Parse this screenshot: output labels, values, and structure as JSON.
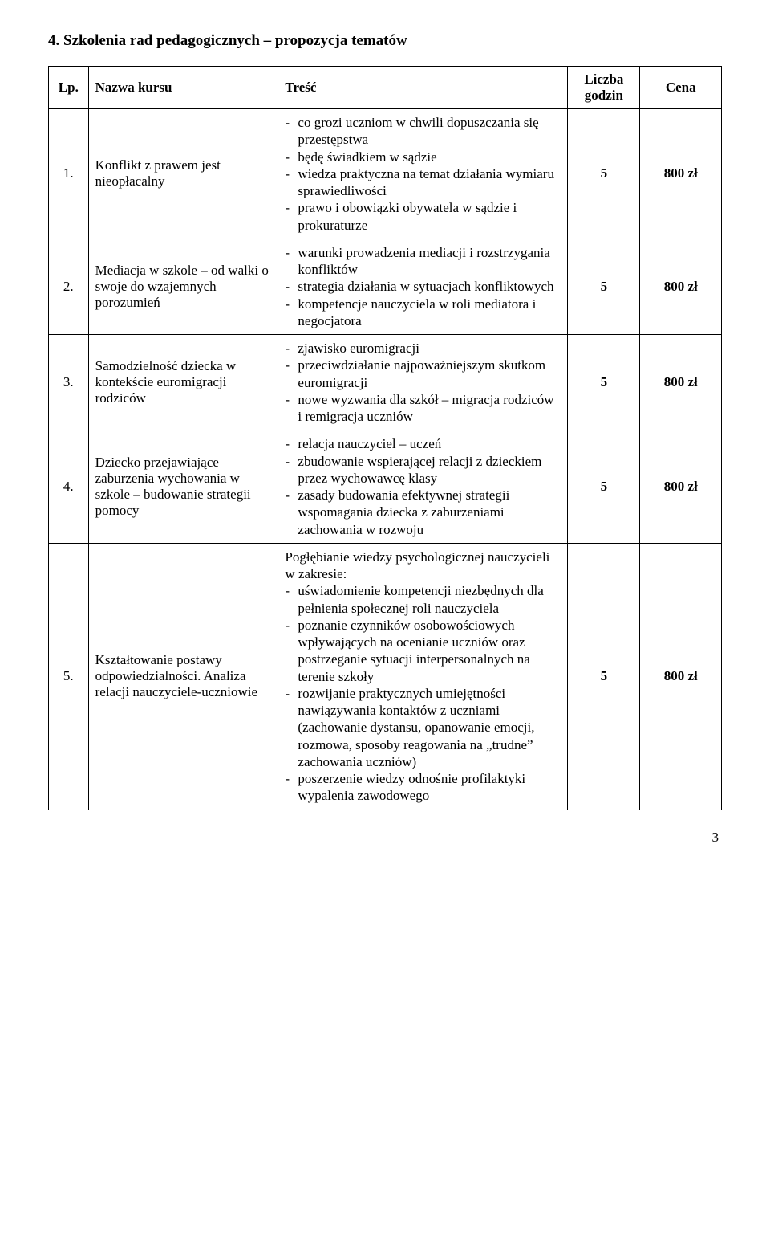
{
  "heading": "4.  Szkolenia rad pedagogicznych – propozycja tematów",
  "headers": {
    "lp": "Lp.",
    "name": "Nazwa kursu",
    "tresc": "Treść",
    "godz_l1": "Liczba",
    "godz_l2": "godzin",
    "cena": "Cena"
  },
  "rows": [
    {
      "lp": "1.",
      "name": "Konflikt z prawem jest nieopłacalny",
      "items": [
        {
          "t": "co grozi uczniom w chwili dopuszczania się przestępstwa"
        },
        {
          "t": "będę świadkiem w sądzie"
        },
        {
          "t": "wiedza praktyczna na temat działania wymiaru sprawiedliwości"
        },
        {
          "t": "prawo i obowiązki obywatela w sądzie i prokuraturze"
        }
      ],
      "godz": "5",
      "cena": "800 zł"
    },
    {
      "lp": "2.",
      "name": "Mediacja w szkole – od walki o swoje do wzajemnych porozumień",
      "items": [
        {
          "t": "warunki prowadzenia mediacji i rozstrzygania konfliktów"
        },
        {
          "t": "strategia działania w sytuacjach konfliktowych"
        },
        {
          "t": "kompetencje nauczyciela w roli mediatora i negocjatora"
        }
      ],
      "godz": "5",
      "cena": "800 zł"
    },
    {
      "lp": "3.",
      "name": "Samodzielność dziecka w kontekście euromigracji rodziców",
      "items": [
        {
          "t": "zjawisko euromigracji"
        },
        {
          "t": "przeciwdziałanie najpoważniejszym skutkom euromigracji"
        },
        {
          "t": "nowe wyzwania dla szkół – migracja rodziców i remigracja uczniów"
        }
      ],
      "godz": "5",
      "cena": "800 zł"
    },
    {
      "lp": "4.",
      "name": "Dziecko przejawiające zaburzenia wychowania w szkole – budowanie strategii pomocy",
      "items": [
        {
          "t": "relacja nauczyciel – uczeń"
        },
        {
          "t": "zbudowanie wspierającej relacji z dzieckiem przez wychowawcę klasy"
        },
        {
          "t": "zasady budowania efektywnej strategii wspomagania dziecka z zaburzeniami zachowania w rozwoju"
        }
      ],
      "godz": "5",
      "cena": "800 zł"
    },
    {
      "lp": "5.",
      "name": "Kształtowanie postawy odpowiedzialności. Analiza relacji nauczyciele-uczniowie",
      "pretext": "Pogłębianie wiedzy psychologicznej nauczycieli  w zakresie:",
      "items": [
        {
          "t": "uświadomienie kompetencji niezbędnych dla pełnienia społecznej roli nauczyciela"
        },
        {
          "t": "poznanie czynników osobowościowych wpływających na ocenianie  uczniów oraz postrzeganie  sytuacji interpersonalnych na terenie szkoły"
        },
        {
          "t": "rozwijanie  praktycznych umiejętności nawiązywania kontaktów z uczniami (zachowanie dystansu, opanowanie emocji, rozmowa, sposoby reagowania na „trudne” zachowania uczniów)"
        },
        {
          "t": "poszerzenie wiedzy odnośnie profilaktyki wypalenia zawodowego"
        }
      ],
      "godz": "5",
      "cena": "800 zł"
    }
  ],
  "page_number": "3"
}
